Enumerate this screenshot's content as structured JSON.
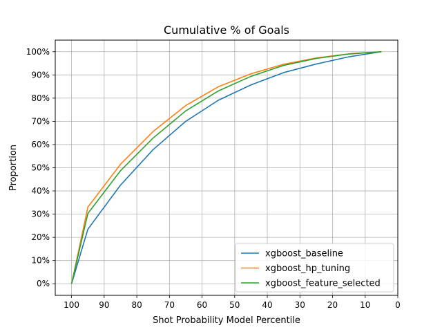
{
  "chart_data": {
    "type": "line",
    "title": "Cumulative % of Goals",
    "xlabel": "Shot Probability Model Percentile",
    "ylabel": "Proportion",
    "x_axis": {
      "reversed": true,
      "lim": [
        105,
        0
      ],
      "ticks": [
        100,
        90,
        80,
        70,
        60,
        50,
        40,
        30,
        20,
        10,
        0
      ],
      "tick_labels": [
        "100",
        "90",
        "80",
        "70",
        "60",
        "50",
        "40",
        "30",
        "20",
        "10",
        "0"
      ]
    },
    "y_axis": {
      "lim": [
        -0.05,
        1.05
      ],
      "ticks": [
        0,
        0.1,
        0.2,
        0.3,
        0.4,
        0.5,
        0.6,
        0.7,
        0.8,
        0.9,
        1.0
      ],
      "tick_labels": [
        "0%",
        "10%",
        "20%",
        "30%",
        "40%",
        "50%",
        "60%",
        "70%",
        "80%",
        "90%",
        "100%"
      ]
    },
    "grid": true,
    "legend": {
      "position": "lower-right"
    },
    "x": [
      100,
      95,
      85,
      75,
      65,
      55,
      45,
      35,
      25,
      15,
      5
    ],
    "series": [
      {
        "name": "xgboost_baseline",
        "color": "#1f77b4",
        "values": [
          0.0,
          0.235,
          0.425,
          0.578,
          0.7,
          0.791,
          0.857,
          0.91,
          0.947,
          0.978,
          1.0
        ]
      },
      {
        "name": "xgboost_hp_tuning",
        "color": "#ff7f0e",
        "values": [
          0.0,
          0.33,
          0.515,
          0.656,
          0.768,
          0.849,
          0.905,
          0.946,
          0.973,
          0.991,
          1.0
        ]
      },
      {
        "name": "xgboost_feature_selected",
        "color": "#2ca02c",
        "values": [
          0.0,
          0.303,
          0.487,
          0.628,
          0.745,
          0.831,
          0.894,
          0.941,
          0.971,
          0.99,
          1.0
        ]
      }
    ]
  }
}
